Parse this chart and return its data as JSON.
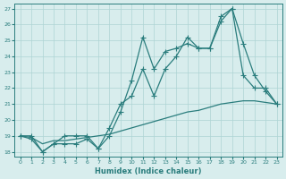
{
  "xlabel": "Humidex (Indice chaleur)",
  "xlim": [
    -0.5,
    23.5
  ],
  "ylim": [
    17.7,
    27.3
  ],
  "yticks": [
    18,
    19,
    20,
    21,
    22,
    23,
    24,
    25,
    26,
    27
  ],
  "xticks": [
    0,
    1,
    2,
    3,
    4,
    5,
    6,
    7,
    8,
    9,
    10,
    11,
    12,
    13,
    14,
    15,
    16,
    17,
    18,
    19,
    20,
    21,
    22,
    23
  ],
  "line_color": "#2a7d7d",
  "bg_color": "#d8eded",
  "grid_color": "#aed4d4",
  "line1_x": [
    0,
    1,
    2,
    3,
    4,
    5,
    6,
    7,
    8,
    9,
    10,
    11,
    12,
    13,
    14,
    15,
    16,
    17,
    18,
    19,
    20,
    21,
    22,
    23
  ],
  "line1_y": [
    19.0,
    18.8,
    18.0,
    18.5,
    18.5,
    18.5,
    18.8,
    18.2,
    19.5,
    21.0,
    21.5,
    23.2,
    21.5,
    23.2,
    24.0,
    25.2,
    24.5,
    24.5,
    26.2,
    27.0,
    22.8,
    22.0,
    22.0,
    21.0
  ],
  "line2_x": [
    0,
    1,
    2,
    3,
    4,
    5,
    6,
    7,
    8,
    9,
    10,
    11,
    12,
    13,
    14,
    15,
    16,
    17,
    18,
    19,
    20,
    21,
    22,
    23
  ],
  "line2_y": [
    19.0,
    19.0,
    18.0,
    18.5,
    19.0,
    19.0,
    19.0,
    18.2,
    19.0,
    20.5,
    22.5,
    25.2,
    23.2,
    24.3,
    24.5,
    24.8,
    24.5,
    24.5,
    26.5,
    27.0,
    24.8,
    22.8,
    21.8,
    21.0
  ],
  "line3_x": [
    0,
    1,
    2,
    3,
    4,
    5,
    6,
    7,
    8,
    9,
    10,
    11,
    12,
    13,
    14,
    15,
    16,
    17,
    18,
    19,
    20,
    21,
    22,
    23
  ],
  "line3_y": [
    19.0,
    18.9,
    18.5,
    18.7,
    18.7,
    18.8,
    18.9,
    19.0,
    19.1,
    19.3,
    19.5,
    19.7,
    19.9,
    20.1,
    20.3,
    20.5,
    20.6,
    20.8,
    21.0,
    21.1,
    21.2,
    21.2,
    21.1,
    21.0
  ]
}
